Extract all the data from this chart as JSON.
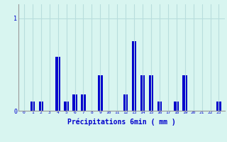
{
  "values": [
    0,
    0.1,
    0.1,
    0.0,
    0.58,
    0.1,
    0.18,
    0.18,
    0.0,
    0.38,
    0.0,
    0.0,
    0.18,
    0.75,
    0.38,
    0.38,
    0.1,
    0.0,
    0.1,
    0.38,
    0.0,
    0.0,
    0.0,
    0.1
  ],
  "xlabel": "Précipitations 6min ( mm )",
  "ylim": [
    0,
    1.15
  ],
  "yticks": [
    0,
    1
  ],
  "bar_color": "#0000cc",
  "bg_color": "#d8f5f0",
  "grid_color": "#b8dedd",
  "tick_color": "#0000cc",
  "label_color": "#0000cc",
  "bar_width": 0.55
}
